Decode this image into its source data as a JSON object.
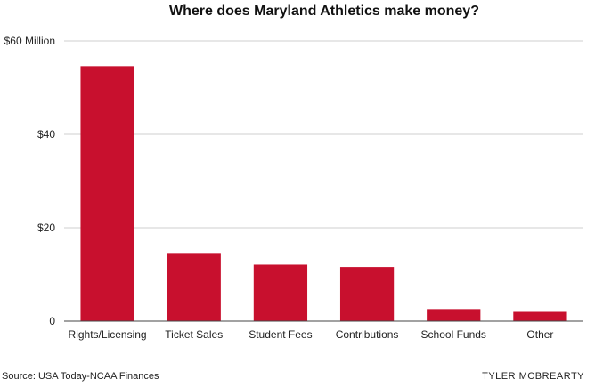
{
  "chart_data": {
    "type": "bar",
    "title": "Where does Maryland Athletics make money?",
    "categories": [
      "Rights/Licensing",
      "Ticket Sales",
      "Student Fees",
      "Contributions",
      "School Funds",
      "Other"
    ],
    "values": [
      54.6,
      14.6,
      12.1,
      11.6,
      2.6,
      2.0
    ],
    "ylim": [
      0,
      60
    ],
    "y_ticks": [
      0,
      20,
      40,
      60
    ],
    "y_tick_labels": [
      "0",
      "$20",
      "$40",
      "$60 Million"
    ],
    "xlabel": "",
    "ylabel": "",
    "grid": true,
    "bar_color": "#c8102e"
  },
  "footer": {
    "source": "Source: USA Today-NCAA Finances",
    "credit": "TYLER MCBREARTY"
  }
}
